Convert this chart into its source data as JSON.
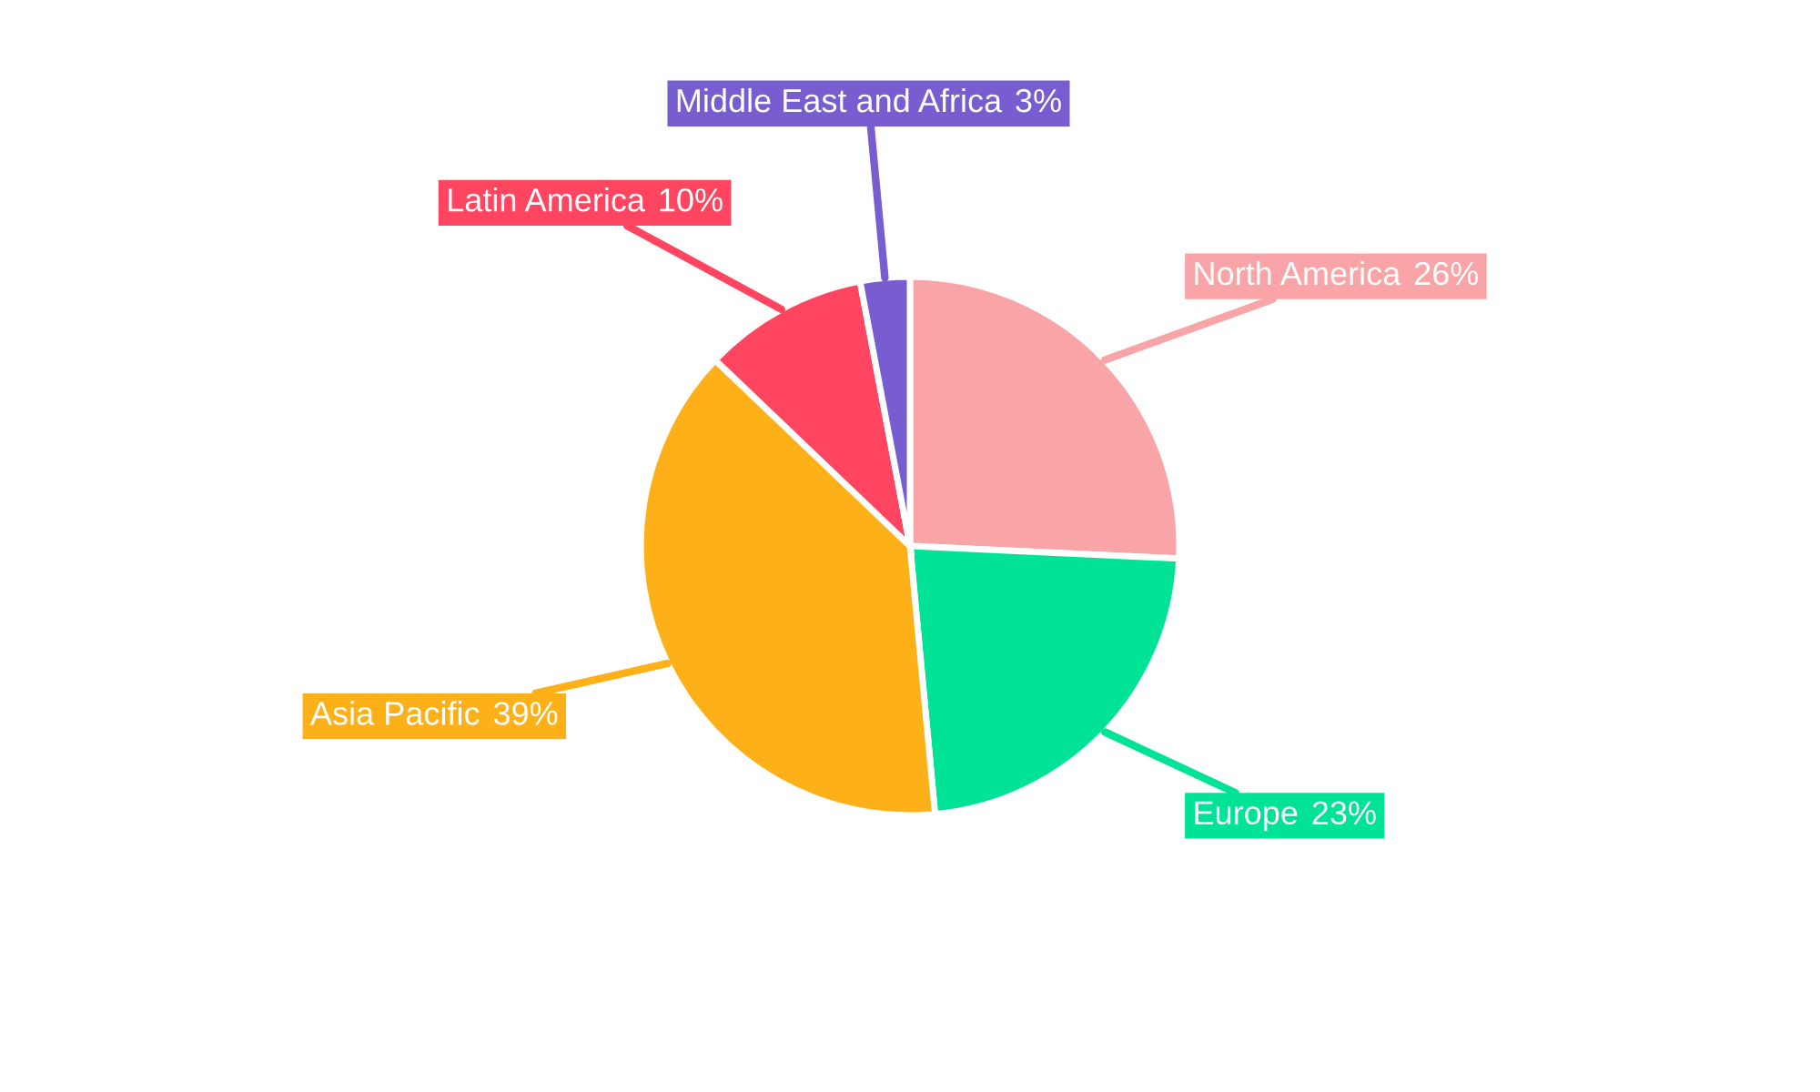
{
  "chart_data": {
    "type": "pie",
    "categories": [
      "North America",
      "Europe",
      "Asia Pacific",
      "Latin America",
      "Middle East and Africa"
    ],
    "values": [
      26,
      23,
      39,
      10,
      3
    ],
    "colors": [
      "#f9a5a7",
      "#00e396",
      "#feb019",
      "#ff4560",
      "#775dd0"
    ],
    "value_labels": [
      "26%",
      "23%",
      "39%",
      "10%",
      "3%"
    ],
    "legend": false
  }
}
